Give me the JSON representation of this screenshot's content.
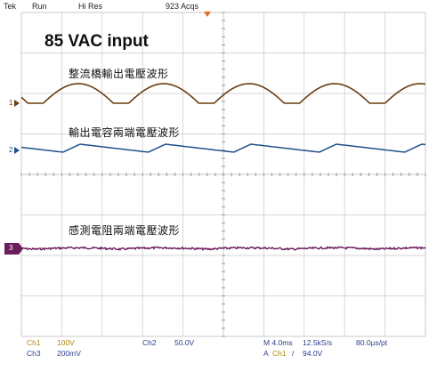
{
  "status_bar": {
    "brand": "Tek",
    "run_state": "Run",
    "acq_mode": "Hi Res",
    "acq_count": "923 Acqs"
  },
  "screen": {
    "title": "85 VAC input",
    "labels": {
      "ch1": "整流橋輸出電壓波形",
      "ch2": "輸出電容兩端電壓波形",
      "ch3": "感測電阻兩端電壓波形"
    }
  },
  "markers": {
    "ch1": "1",
    "ch2": "2",
    "ch3": "3"
  },
  "footer": {
    "ch1_label": "Ch1",
    "ch1_scale": "100V",
    "ch2_label": "Ch2",
    "ch2_scale": "50.0V",
    "ch3_label": "Ch3",
    "ch3_scale": "200mV",
    "timebase": "M 4.0ms",
    "sample_rate": "12.5kS/s",
    "record_interval": "80.0µs/pt",
    "trigger_mode": "A",
    "trigger_source": "Ch1",
    "trigger_slope": "/",
    "trigger_level": "94.0V"
  },
  "colors": {
    "ch1": "#6b3f0e",
    "ch2": "#1f4f8c",
    "ch3": "#6b1d5c",
    "grid": "#c8c8c8",
    "grid_dot": "#9a9a9a",
    "footer_text": "#2a3e8c",
    "ch1_footer": "#b5850b",
    "trigger": "#e86b1f"
  }
}
